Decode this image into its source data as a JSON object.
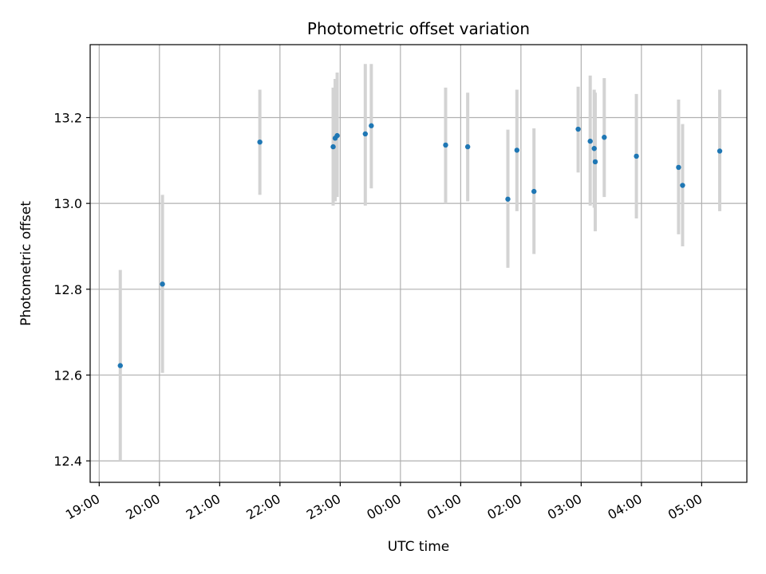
{
  "chart_data": {
    "type": "scatter",
    "title": "Photometric offset variation",
    "xlabel": "UTC time",
    "ylabel": "Photometric offset",
    "x_tick_labels": [
      "19:00",
      "20:00",
      "21:00",
      "22:00",
      "23:00",
      "00:00",
      "01:00",
      "02:00",
      "03:00",
      "04:00",
      "05:00"
    ],
    "y_ticks": [
      "12.4",
      "12.6",
      "12.8",
      "13.0",
      "13.2"
    ],
    "xlim": [
      "18:51",
      "05:45"
    ],
    "ylim": [
      12.35,
      13.37
    ],
    "grid": true,
    "point_color": "#1f77b4",
    "errorbar_color": "#d3d3d3",
    "points": [
      {
        "x": "19:21",
        "y": 12.622,
        "lo": 12.4,
        "hi": 12.845
      },
      {
        "x": "20:03",
        "y": 12.812,
        "lo": 12.605,
        "hi": 13.02
      },
      {
        "x": "21:40",
        "y": 13.143,
        "lo": 13.02,
        "hi": 13.265
      },
      {
        "x": "22:53",
        "y": 13.132,
        "lo": 12.995,
        "hi": 13.27
      },
      {
        "x": "22:55",
        "y": 13.152,
        "lo": 13.005,
        "hi": 13.29
      },
      {
        "x": "22:57",
        "y": 13.158,
        "lo": 13.015,
        "hi": 13.305
      },
      {
        "x": "23:25",
        "y": 13.162,
        "lo": 12.995,
        "hi": 13.325
      },
      {
        "x": "23:31",
        "y": 13.181,
        "lo": 13.035,
        "hi": 13.325
      },
      {
        "x": "00:45",
        "y": 13.136,
        "lo": 13.0,
        "hi": 13.27
      },
      {
        "x": "01:07",
        "y": 13.132,
        "lo": 13.005,
        "hi": 13.258
      },
      {
        "x": "01:47",
        "y": 13.01,
        "lo": 12.85,
        "hi": 13.172
      },
      {
        "x": "01:56",
        "y": 13.124,
        "lo": 12.982,
        "hi": 13.265
      },
      {
        "x": "02:13",
        "y": 13.028,
        "lo": 12.882,
        "hi": 13.175
      },
      {
        "x": "02:57",
        "y": 13.173,
        "lo": 13.072,
        "hi": 13.272
      },
      {
        "x": "03:09",
        "y": 13.145,
        "lo": 12.995,
        "hi": 13.298
      },
      {
        "x": "03:13",
        "y": 13.128,
        "lo": 12.99,
        "hi": 13.265
      },
      {
        "x": "03:14",
        "y": 13.097,
        "lo": 12.935,
        "hi": 13.258
      },
      {
        "x": "03:23",
        "y": 13.154,
        "lo": 13.015,
        "hi": 13.292
      },
      {
        "x": "03:55",
        "y": 13.11,
        "lo": 12.965,
        "hi": 13.255
      },
      {
        "x": "04:37",
        "y": 13.084,
        "lo": 12.928,
        "hi": 13.242
      },
      {
        "x": "04:41",
        "y": 13.042,
        "lo": 12.9,
        "hi": 13.185
      },
      {
        "x": "05:18",
        "y": 13.122,
        "lo": 12.982,
        "hi": 13.265
      }
    ]
  }
}
